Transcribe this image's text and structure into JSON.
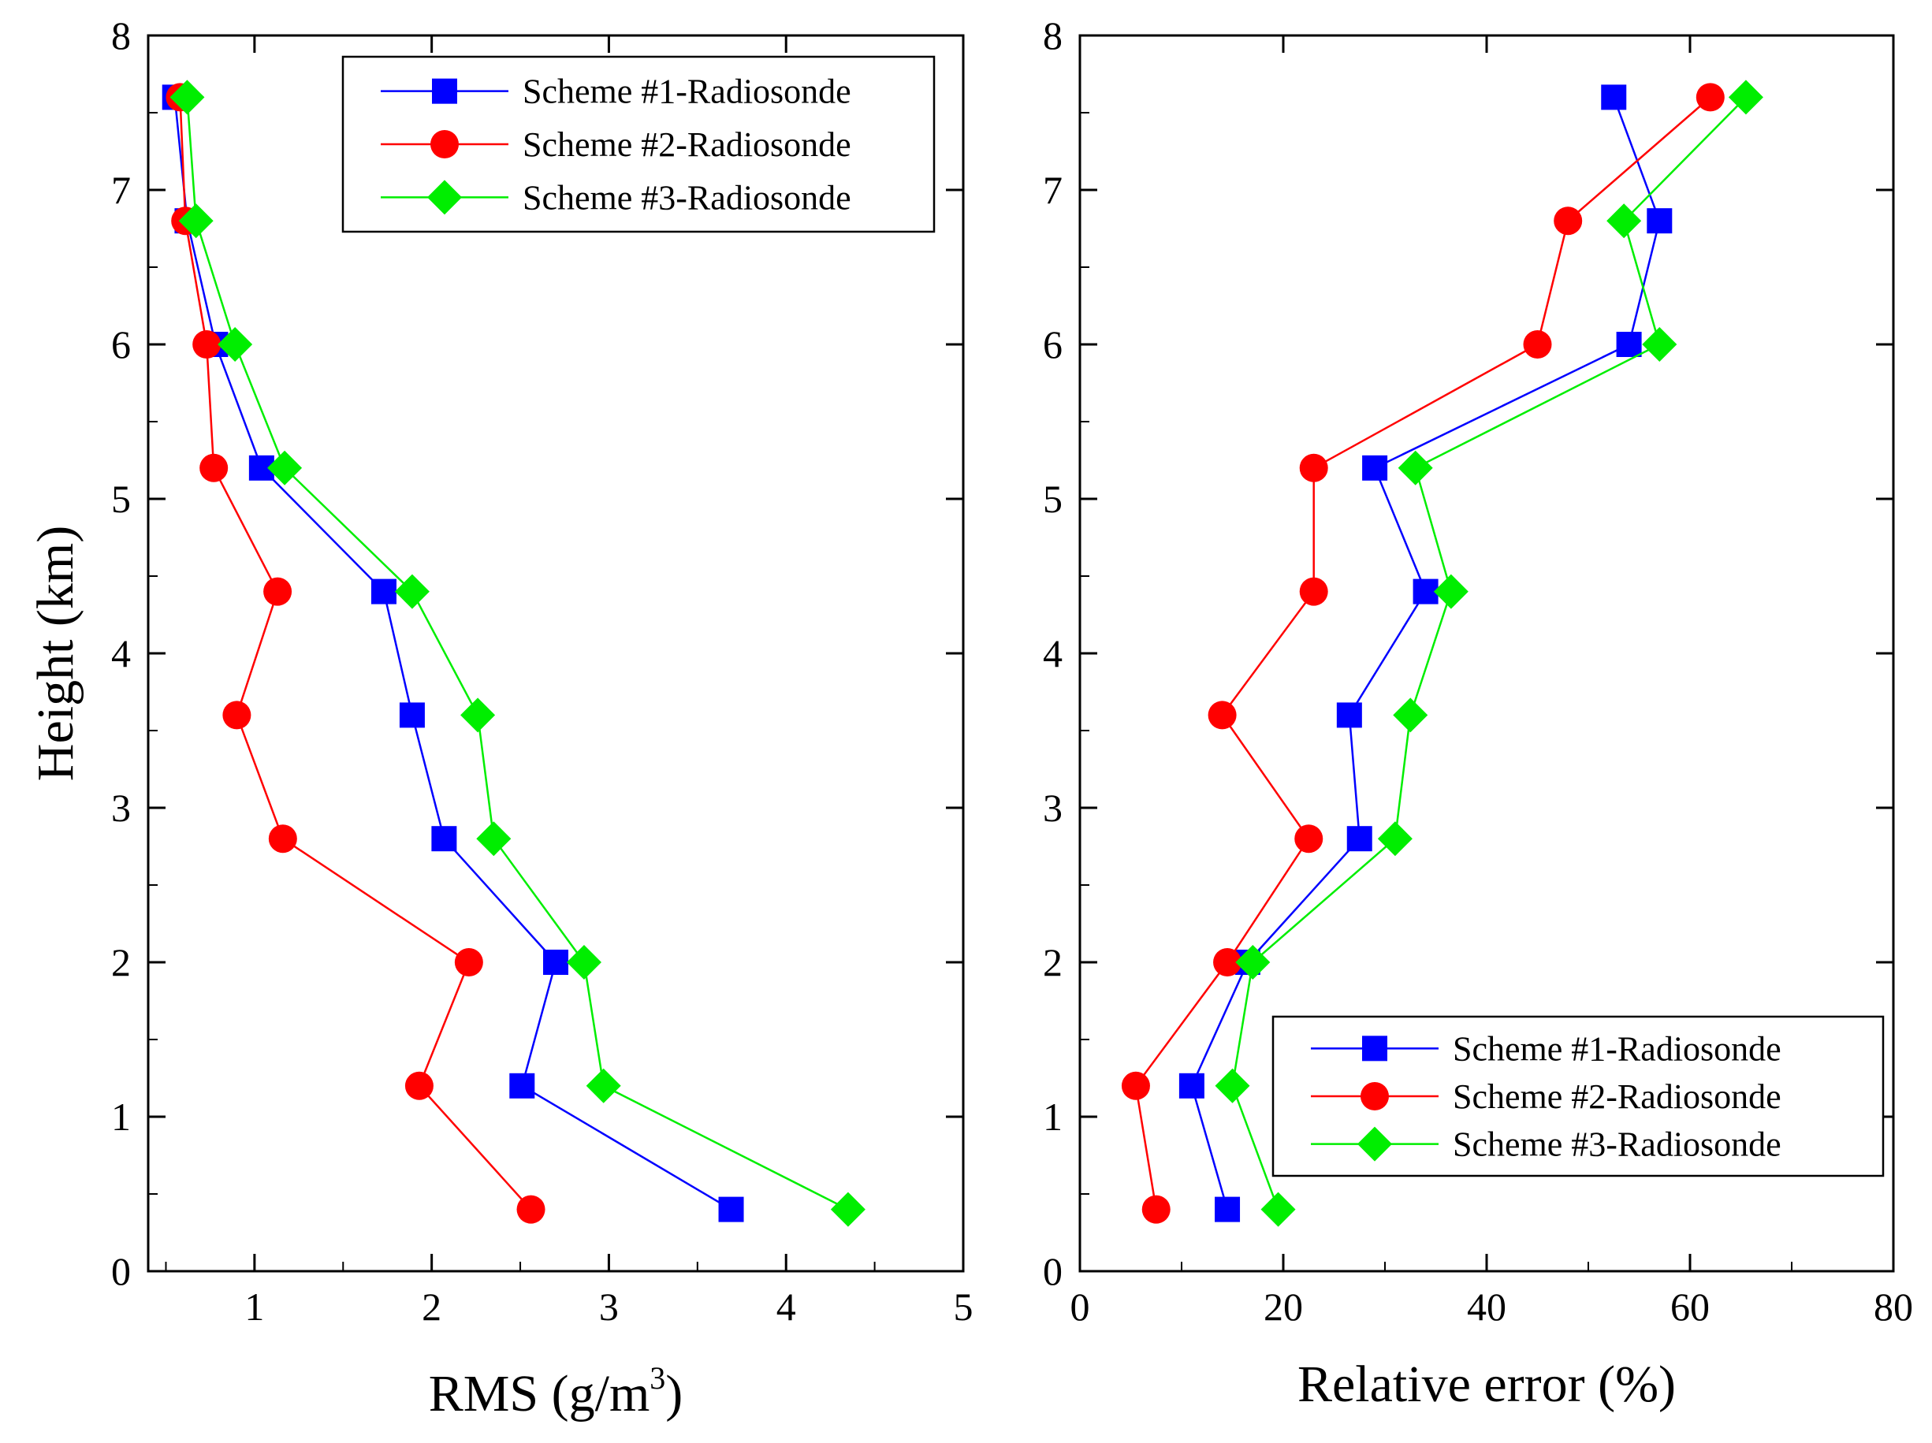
{
  "colors": {
    "scheme1": "#0000ff",
    "scheme2": "#ff0000",
    "scheme3": "#00ee00"
  },
  "chart_data": [
    {
      "type": "line",
      "panel": "left",
      "title": "",
      "xlabel": "RMS (g/m",
      "xlabel_sup": "3",
      "xlabel_end": ")",
      "ylabel": "Height (km)",
      "xlim": [
        0.4,
        5
      ],
      "ylim": [
        0,
        8
      ],
      "xticks": [
        1,
        2,
        3,
        4,
        5
      ],
      "xtick_labels": [
        "1",
        "2",
        "3",
        "4",
        "5"
      ],
      "yticks": [
        0,
        1,
        2,
        3,
        4,
        5,
        6,
        7,
        8
      ],
      "ytick_labels": [
        "0",
        "1",
        "2",
        "3",
        "4",
        "5",
        "6",
        "7",
        "8"
      ],
      "legend_position": "top-right",
      "series": [
        {
          "name": "Scheme #1-Radiosonde",
          "marker": "square",
          "color_key": "scheme1",
          "points": [
            [
              0.55,
              7.6
            ],
            [
              0.62,
              6.8
            ],
            [
              0.78,
              6.0
            ],
            [
              1.04,
              5.2
            ],
            [
              1.73,
              4.4
            ],
            [
              1.89,
              3.6
            ],
            [
              2.07,
              2.8
            ],
            [
              2.7,
              2.0
            ],
            [
              2.51,
              1.2
            ],
            [
              3.69,
              0.4
            ]
          ]
        },
        {
          "name": "Scheme #2-Radiosonde",
          "marker": "circle",
          "color_key": "scheme2",
          "points": [
            [
              0.58,
              7.6
            ],
            [
              0.61,
              6.8
            ],
            [
              0.73,
              6.0
            ],
            [
              0.77,
              5.2
            ],
            [
              1.13,
              4.4
            ],
            [
              0.9,
              3.6
            ],
            [
              1.16,
              2.8
            ],
            [
              2.21,
              2.0
            ],
            [
              1.93,
              1.2
            ],
            [
              2.56,
              0.4
            ]
          ]
        },
        {
          "name": "Scheme #3-Radiosonde",
          "marker": "diamond",
          "color_key": "scheme3",
          "points": [
            [
              0.62,
              7.6
            ],
            [
              0.67,
              6.8
            ],
            [
              0.89,
              6.0
            ],
            [
              1.17,
              5.2
            ],
            [
              1.89,
              4.4
            ],
            [
              2.26,
              3.6
            ],
            [
              2.35,
              2.8
            ],
            [
              2.86,
              2.0
            ],
            [
              2.97,
              1.2
            ],
            [
              4.35,
              0.4
            ]
          ]
        }
      ]
    },
    {
      "type": "line",
      "panel": "right",
      "title": "",
      "xlabel": "Relative error (%)",
      "ylabel": "",
      "xlim": [
        0,
        80
      ],
      "ylim": [
        0,
        8
      ],
      "xticks": [
        0,
        20,
        40,
        60,
        80
      ],
      "xtick_labels": [
        "0",
        "20",
        "40",
        "60",
        "80"
      ],
      "yticks": [
        0,
        1,
        2,
        3,
        4,
        5,
        6,
        7,
        8
      ],
      "ytick_labels": [
        "0",
        "1",
        "2",
        "3",
        "4",
        "5",
        "6",
        "7",
        "8"
      ],
      "legend_position": "bottom-right",
      "series": [
        {
          "name": "Scheme #1-Radiosonde",
          "marker": "square",
          "color_key": "scheme1",
          "points": [
            [
              52.5,
              7.6
            ],
            [
              57.0,
              6.8
            ],
            [
              54.0,
              6.0
            ],
            [
              29.0,
              5.2
            ],
            [
              34.0,
              4.4
            ],
            [
              26.5,
              3.6
            ],
            [
              27.5,
              2.8
            ],
            [
              16.5,
              2.0
            ],
            [
              11.0,
              1.2
            ],
            [
              14.5,
              0.4
            ]
          ]
        },
        {
          "name": "Scheme #2-Radiosonde",
          "marker": "circle",
          "color_key": "scheme2",
          "points": [
            [
              62.0,
              7.6
            ],
            [
              48.0,
              6.8
            ],
            [
              45.0,
              6.0
            ],
            [
              23.0,
              5.2
            ],
            [
              23.0,
              4.4
            ],
            [
              14.0,
              3.6
            ],
            [
              22.5,
              2.8
            ],
            [
              14.5,
              2.0
            ],
            [
              5.5,
              1.2
            ],
            [
              7.5,
              0.4
            ]
          ]
        },
        {
          "name": "Scheme #3-Radiosonde",
          "marker": "diamond",
          "color_key": "scheme3",
          "points": [
            [
              65.5,
              7.6
            ],
            [
              53.5,
              6.8
            ],
            [
              57.0,
              6.0
            ],
            [
              33.0,
              5.2
            ],
            [
              36.5,
              4.4
            ],
            [
              32.5,
              3.6
            ],
            [
              31.0,
              2.8
            ],
            [
              17.0,
              2.0
            ],
            [
              15.0,
              1.2
            ],
            [
              19.5,
              0.4
            ]
          ]
        }
      ]
    }
  ]
}
